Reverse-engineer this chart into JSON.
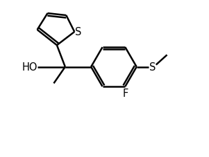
{
  "background_color": "#ffffff",
  "line_color": "#000000",
  "line_width": 1.8,
  "font_size": 10.5,
  "labels": {
    "S_thiophene": "S",
    "HO": "HO",
    "S_methylthio": "S",
    "F": "F"
  },
  "figsize": [
    3.01,
    2.28
  ],
  "dpi": 100,
  "xlim": [
    0,
    10
  ],
  "ylim": [
    0,
    7.6
  ]
}
